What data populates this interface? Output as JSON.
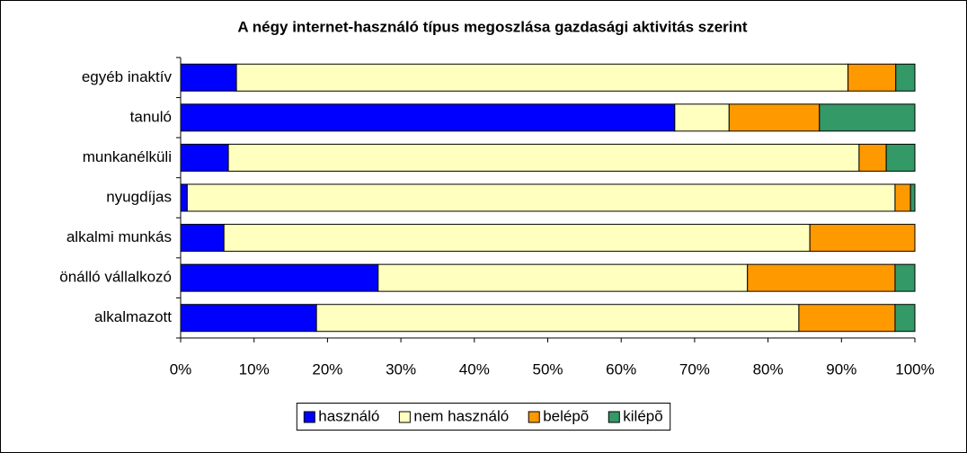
{
  "chart_data": {
    "type": "stacked_bar_horizontal",
    "title": "A négy internet-használó típus megoszlása gazdasági aktivitás szerint",
    "categories": [
      "egyéb inaktív",
      "tanuló",
      "munkanélküli",
      "nyugdíjas",
      "alkalmi munkás",
      "önálló vállalkozó",
      "alkalmazott"
    ],
    "series": [
      {
        "name": "használó",
        "color": "#0000ff",
        "values": [
          7.6,
          67.3,
          6.5,
          0.9,
          5.9,
          26.9,
          18.5
        ]
      },
      {
        "name": "nem használó",
        "color": "#ffffc0",
        "values": [
          83.3,
          7.4,
          85.9,
          96.4,
          79.8,
          50.3,
          65.7
        ]
      },
      {
        "name": "belépõ",
        "color": "#ff9900",
        "values": [
          6.5,
          12.3,
          3.7,
          2.1,
          14.3,
          20.1,
          13.1
        ]
      },
      {
        "name": "kilépõ",
        "color": "#339966",
        "values": [
          2.6,
          13.0,
          3.9,
          0.6,
          0,
          2.7,
          2.7
        ]
      }
    ],
    "xlim": [
      0,
      100
    ],
    "xticks": [
      {
        "value": 0,
        "label": "0%"
      },
      {
        "value": 10,
        "label": "10%"
      },
      {
        "value": 20,
        "label": "20%"
      },
      {
        "value": 30,
        "label": "30%"
      },
      {
        "value": 40,
        "label": "40%"
      },
      {
        "value": 50,
        "label": "50%"
      },
      {
        "value": 60,
        "label": "60%"
      },
      {
        "value": 70,
        "label": "70%"
      },
      {
        "value": 80,
        "label": "80%"
      },
      {
        "value": 90,
        "label": "90%"
      },
      {
        "value": 100,
        "label": "100%"
      }
    ],
    "legend": "bottom"
  }
}
